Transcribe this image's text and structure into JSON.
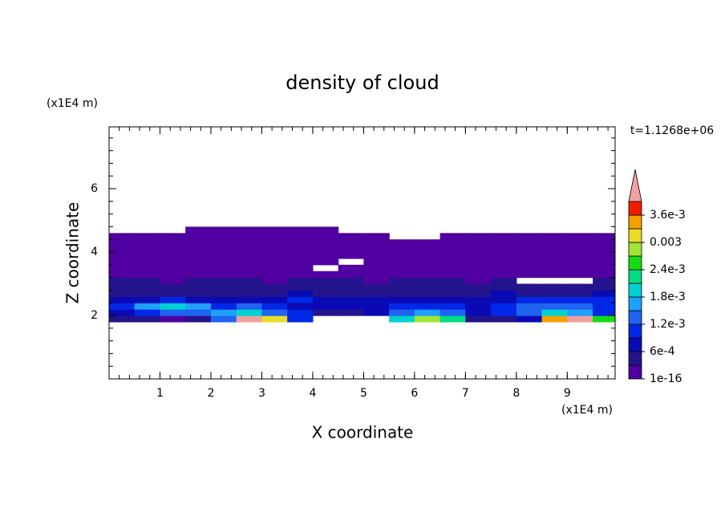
{
  "chart_data": {
    "type": "contour",
    "title": "density of cloud",
    "x_label": "X coordinate",
    "y_label": "Z coordinate",
    "x_unit": "(x1E4 m)",
    "y_unit": "(x1E4 m)",
    "time_label": "t=1.1268e+06",
    "xlim": [
      0,
      9.94
    ],
    "ylim": [
      0,
      7.95
    ],
    "xticks": [
      1,
      2,
      3,
      4,
      5,
      6,
      7,
      8,
      9
    ],
    "yticks": [
      2,
      4,
      6
    ],
    "x": [
      0.25,
      0.75,
      1.25,
      1.75,
      2.25,
      2.75,
      3.25,
      3.75,
      4.25,
      4.75,
      5.25,
      5.75,
      6.25,
      6.75,
      7.25,
      7.75,
      8.25,
      8.75,
      9.25,
      9.75
    ],
    "y": [
      1.9,
      2.1,
      2.3,
      2.5,
      2.7,
      2.9,
      3.1,
      3.3,
      3.5,
      3.7,
      3.9,
      4.1,
      4.3,
      4.5,
      4.7
    ],
    "field": [
      [
        0.0003,
        0.0003,
        0.0002,
        0.0003,
        0.0014,
        0.0042,
        0.003,
        0.001,
        null,
        null,
        null,
        0.002,
        0.0028,
        0.0022,
        0.0005,
        0.0004,
        0.0008,
        0.0033,
        0.0042,
        0.0026
      ],
      [
        0.0006,
        0.001,
        0.0013,
        0.0012,
        0.0016,
        0.0019,
        0.0014,
        0.0009,
        0.0005,
        0.0004,
        0.0006,
        0.0012,
        0.0015,
        0.0013,
        0.0008,
        0.0009,
        0.0014,
        0.0018,
        0.0016,
        0.0011
      ],
      [
        0.0009,
        0.0017,
        0.0019,
        0.0016,
        0.0011,
        0.0012,
        0.001,
        0.0007,
        0.0006,
        0.0007,
        0.0008,
        0.0009,
        0.0011,
        0.001,
        0.0007,
        0.001,
        0.0013,
        0.0012,
        0.0014,
        0.001
      ],
      [
        0.0007,
        0.0008,
        0.0009,
        0.0007,
        0.0006,
        0.0007,
        0.0008,
        0.0009,
        0.0007,
        0.0006,
        0.0007,
        0.0008,
        0.0007,
        0.0006,
        0.0007,
        0.0008,
        0.0009,
        0.0011,
        0.001,
        0.0009
      ],
      [
        0.0004,
        0.0005,
        0.0004,
        0.0005,
        0.0004,
        0.0005,
        0.0005,
        0.0006,
        0.0005,
        0.0005,
        0.0004,
        0.0005,
        0.0005,
        0.0004,
        0.0005,
        0.0006,
        0.0005,
        0.0004,
        0.0005,
        0.0006
      ],
      [
        0.0004,
        0.0003,
        0.0004,
        0.0004,
        0.0003,
        0.0004,
        0.0004,
        0.0003,
        0.0004,
        0.0004,
        0.0003,
        0.0004,
        0.0004,
        0.0003,
        0.0004,
        0.0004,
        0.0003,
        0.0004,
        0.0004,
        0.0004
      ],
      [
        0.0003,
        0.0003,
        0.0002,
        0.0003,
        0.0003,
        0.0003,
        0.0002,
        0.0003,
        0.0003,
        0.0003,
        0.0002,
        0.0003,
        0.0003,
        0.0003,
        0.0002,
        0.0003,
        null,
        null,
        null,
        0.0003
      ],
      [
        0.0002,
        0.0002,
        0.0002,
        0.0001,
        0.0002,
        0.0002,
        0.0002,
        0.0002,
        0.0001,
        0.0002,
        0.0002,
        0.0002,
        0.0002,
        0.0002,
        0.0001,
        0.0002,
        0.0002,
        0.0002,
        0.0002,
        0.0002
      ],
      [
        0.0001,
        0.0002,
        0.0001,
        0.0001,
        0.0001,
        0.0002,
        0.0001,
        0.0001,
        null,
        0.0001,
        0.0001,
        0.0001,
        0.0002,
        0.0001,
        0.0001,
        0.0001,
        0.0001,
        0.0002,
        0.0001,
        0.0001
      ],
      [
        0.0001,
        0.0001,
        0.0001,
        0.0001,
        0.0001,
        0.0001,
        0.0001,
        0.0001,
        0.0001,
        null,
        0.0001,
        0.0001,
        0.0001,
        0.0001,
        0.0001,
        0.0001,
        0.0001,
        0.0001,
        0.0001,
        0.0001
      ],
      [
        0.0001,
        0.0001,
        0.0001,
        0.0001,
        0.0001,
        0.0001,
        0.0001,
        0.0001,
        0.0001,
        0.0001,
        0.0001,
        0.0001,
        0.0001,
        0.0001,
        0.0001,
        0.0001,
        0.0001,
        0.0001,
        0.0001,
        0.0001
      ],
      [
        0.0001,
        0.0001,
        0.0001,
        0.0001,
        0.0001,
        0.0001,
        0.0001,
        0.0001,
        0.0001,
        0.0001,
        0.0001,
        0.0001,
        0.0001,
        0.0001,
        0.0001,
        0.0001,
        0.0001,
        0.0001,
        0.0001,
        0.0001
      ],
      [
        0.0001,
        0.0001,
        0.0001,
        0.0001,
        0.0001,
        0.0001,
        0.0001,
        0.0001,
        0.0001,
        0.0001,
        0.0001,
        0.0001,
        0.0001,
        0.0001,
        0.0001,
        0.0001,
        0.0001,
        0.0001,
        0.0001,
        0.0001
      ],
      [
        0.0001,
        0.0001,
        0.0001,
        0.0001,
        0.0001,
        0.0001,
        0.0001,
        0.0001,
        0.0001,
        0.0001,
        0.0001,
        null,
        null,
        0.0001,
        0.0001,
        0.0001,
        0.0001,
        0.0001,
        0.0001,
        0.0001
      ],
      [
        null,
        null,
        null,
        0.0001,
        0.0001,
        0.0001,
        0.0001,
        0.0001,
        0.0001,
        null,
        null,
        null,
        null,
        null,
        null,
        null,
        null,
        null,
        null,
        null
      ]
    ],
    "levels": [
      1e-16,
      0.0003,
      0.0006,
      0.0009,
      0.0012,
      0.0015,
      0.0018,
      0.0021,
      0.0024,
      0.0027,
      0.003,
      0.0033,
      0.0036,
      0.0039
    ],
    "colors": [
      "#5000a0",
      "#23148c",
      "#0a0ab4",
      "#0028e6",
      "#1e64f0",
      "#1ea0ff",
      "#00d2d2",
      "#00dc82",
      "#14dc14",
      "#a0e632",
      "#ebdc28",
      "#f5a000",
      "#f01e00"
    ],
    "over_color": "#f0a0a0",
    "colorbar_ticks": [
      1e-16,
      {
        "value": 0.0006,
        "label": "6e-4"
      },
      {
        "value": 0.0012,
        "label": "1.2e-3"
      },
      {
        "value": 0.0018,
        "label": "1.8e-3"
      },
      {
        "value": 0.0024,
        "label": "2.4e-3"
      },
      0.003,
      {
        "value": 0.0036,
        "label": "3.6e-3"
      }
    ]
  }
}
